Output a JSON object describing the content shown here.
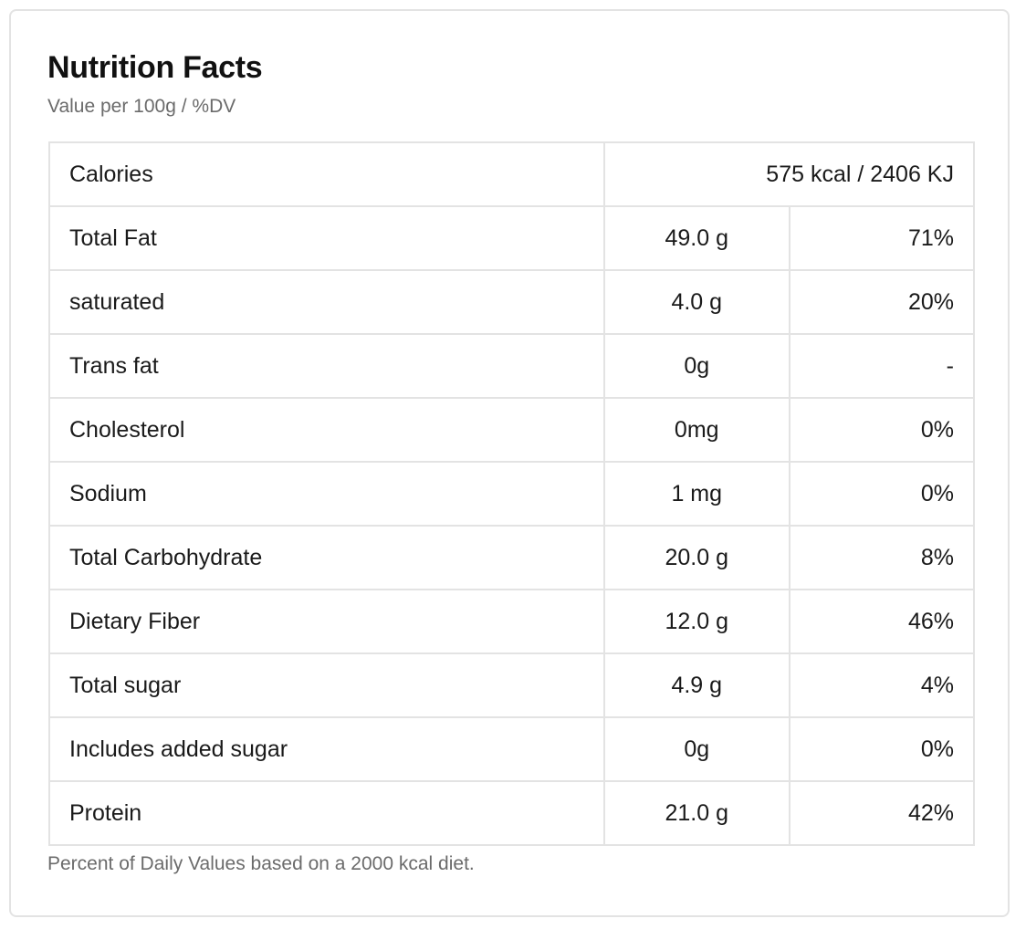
{
  "panel": {
    "title": "Nutrition Facts",
    "subtitle": "Value per 100g / %DV",
    "footnote": "Percent of Daily Values based on a 2000 kcal diet."
  },
  "calories": {
    "label": "Calories",
    "value": "575 kcal / 2406 KJ"
  },
  "nutrients": [
    {
      "name": "Total Fat",
      "amount": "49.0 g",
      "dv": "71%"
    },
    {
      "name": "saturated",
      "amount": "4.0 g",
      "dv": "20%"
    },
    {
      "name": "Trans fat",
      "amount": "0g",
      "dv": "-"
    },
    {
      "name": "Cholesterol",
      "amount": "0mg",
      "dv": "0%"
    },
    {
      "name": "Sodium",
      "amount": "1 mg",
      "dv": "0%"
    },
    {
      "name": "Total Carbohydrate",
      "amount": "20.0 g",
      "dv": "8%"
    },
    {
      "name": "Dietary Fiber",
      "amount": "12.0 g",
      "dv": "46%"
    },
    {
      "name": "Total sugar",
      "amount": "4.9 g",
      "dv": "4%"
    },
    {
      "name": "Includes added sugar",
      "amount": "0g",
      "dv": "0%"
    },
    {
      "name": "Protein",
      "amount": "21.0 g",
      "dv": "42%"
    }
  ],
  "colors": {
    "border": "#e3e3e3",
    "text": "#1a1a1a",
    "muted_text": "#6b6b6b"
  }
}
